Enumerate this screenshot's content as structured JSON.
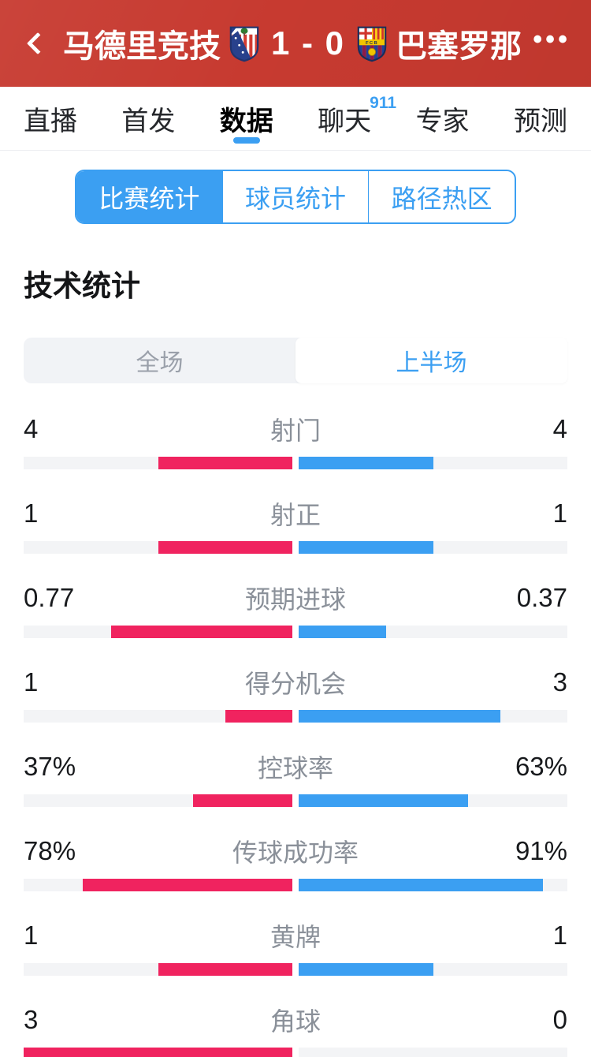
{
  "header": {
    "home_team": "马德里竞技",
    "away_team": "巴塞罗那",
    "score": "1 - 0",
    "more_label": "•••"
  },
  "tabs": [
    {
      "label": "直播",
      "active": false
    },
    {
      "label": "首发",
      "active": false
    },
    {
      "label": "数据",
      "active": true
    },
    {
      "label": "聊天",
      "active": false,
      "badge": "911"
    },
    {
      "label": "专家",
      "active": false
    },
    {
      "label": "预测",
      "active": false
    }
  ],
  "stat_tabs": [
    {
      "label": "比赛统计",
      "active": true
    },
    {
      "label": "球员统计",
      "active": false
    },
    {
      "label": "路径热区",
      "active": false
    }
  ],
  "section_title": "技术统计",
  "period_toggle": [
    {
      "label": "全场",
      "active": false
    },
    {
      "label": "上半场",
      "active": true
    }
  ],
  "stats": [
    {
      "label": "射门",
      "home": "4",
      "away": "4"
    },
    {
      "label": "射正",
      "home": "1",
      "away": "1"
    },
    {
      "label": "预期进球",
      "home": "0.77",
      "away": "0.37"
    },
    {
      "label": "得分机会",
      "home": "1",
      "away": "3"
    },
    {
      "label": "控球率",
      "home": "37%",
      "away": "63%"
    },
    {
      "label": "传球成功率",
      "home": "78%",
      "away": "91%"
    },
    {
      "label": "黄牌",
      "home": "1",
      "away": "1"
    },
    {
      "label": "角球",
      "home": "3",
      "away": "0"
    }
  ],
  "colors": {
    "header_bg": "#c73a30",
    "accent_blue": "#3b9ff2",
    "home_bar": "#f0235f",
    "away_bar": "#3b9ff2",
    "bar_track": "#f3f4f6"
  }
}
